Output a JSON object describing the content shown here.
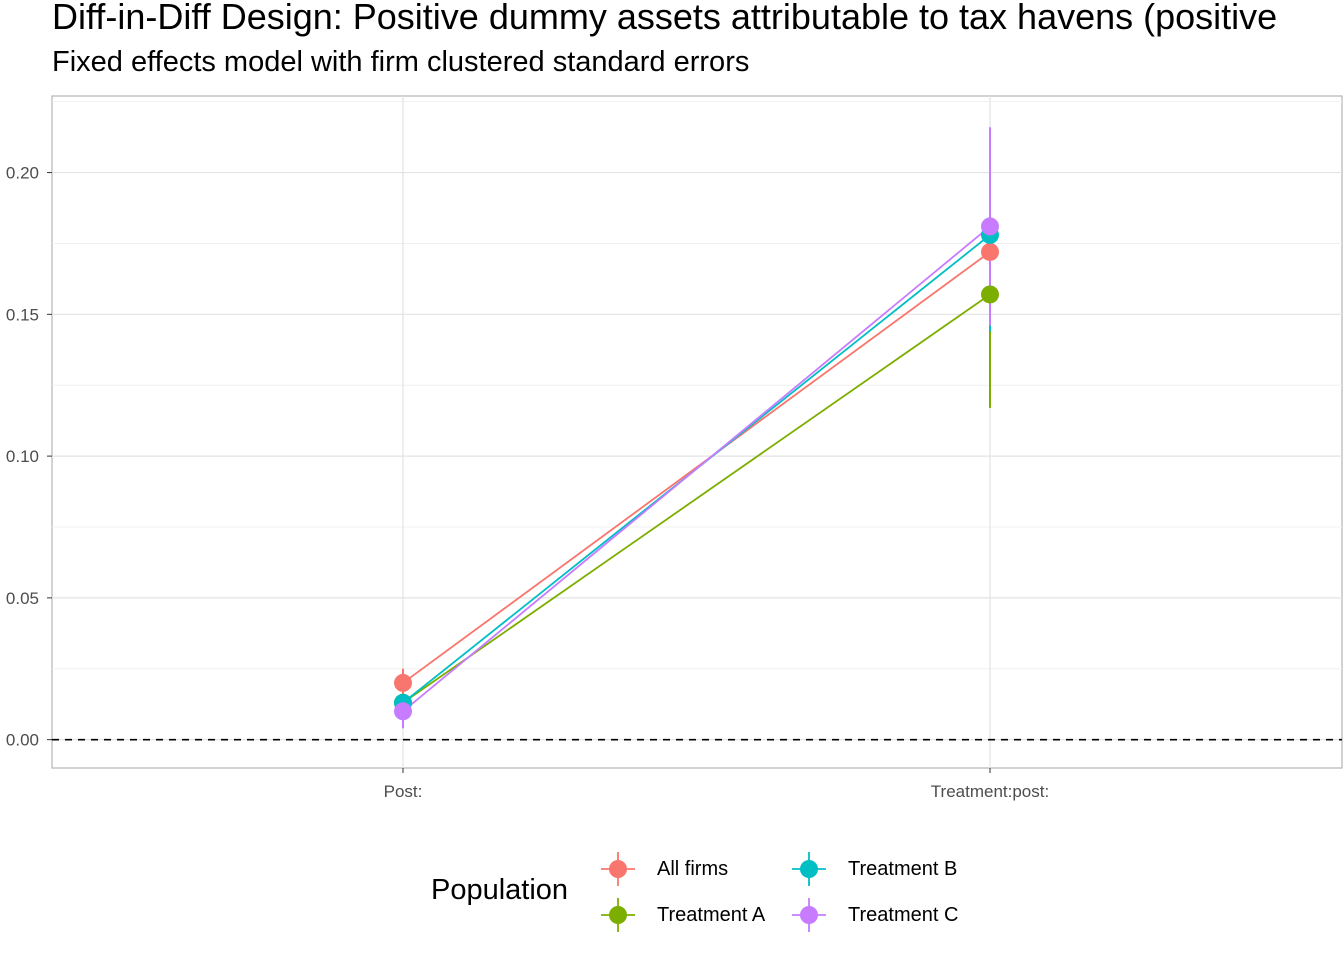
{
  "title": "Diff-in-Diff Design: Positive dummy assets attributable to tax havens (positive",
  "subtitle": "Fixed effects model with firm clustered standard errors",
  "chart_data": {
    "type": "line",
    "categories": [
      "Post:",
      "Treatment:post:"
    ],
    "ylim": [
      -0.01,
      0.227
    ],
    "yticks": [
      0.0,
      0.05,
      0.1,
      0.15,
      0.2
    ],
    "ytick_labels": [
      "0.00",
      "0.05",
      "0.10",
      "0.15",
      "0.20"
    ],
    "reference_line": 0,
    "grid": true,
    "legend_title": "Population",
    "legend_position": "bottom",
    "series": [
      {
        "name": "All firms",
        "color": "#F8766D",
        "values": [
          0.02,
          0.172
        ],
        "ci_low": [
          0.015,
          0.172
        ],
        "ci_high": [
          0.025,
          0.172
        ]
      },
      {
        "name": "Treatment A",
        "color": "#7CAE00",
        "values": [
          0.013,
          0.157
        ],
        "ci_low": [
          0.012,
          0.117
        ],
        "ci_high": [
          0.014,
          0.162
        ]
      },
      {
        "name": "Treatment B",
        "color": "#00BFC4",
        "values": [
          0.013,
          0.178
        ],
        "ci_low": [
          0.011,
          0.144
        ],
        "ci_high": [
          0.015,
          0.18
        ]
      },
      {
        "name": "Treatment C",
        "color": "#C77CFF",
        "values": [
          0.01,
          0.181
        ],
        "ci_low": [
          0.004,
          0.146
        ],
        "ci_high": [
          0.016,
          0.216
        ]
      }
    ]
  }
}
